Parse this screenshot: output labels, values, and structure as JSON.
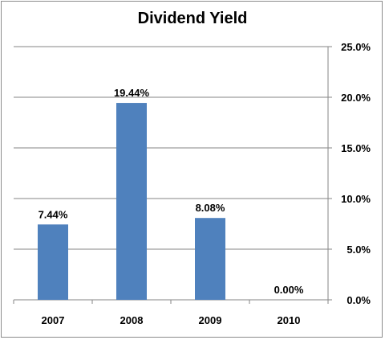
{
  "chart_data": {
    "type": "bar",
    "title": "Dividend Yield",
    "categories": [
      "2007",
      "2008",
      "2009",
      "2010"
    ],
    "values": [
      7.44,
      19.44,
      8.08,
      0.0
    ],
    "data_labels": [
      "7.44%",
      "19.44%",
      "8.08%",
      "0.00%"
    ],
    "ylim": [
      0,
      25
    ],
    "yticks": [
      "0.0%",
      "5.0%",
      "10.0%",
      "15.0%",
      "20.0%",
      "25.0%"
    ],
    "y_axis_side": "right",
    "grid": true,
    "legend": "none",
    "bar_color": "#4f81bd"
  }
}
